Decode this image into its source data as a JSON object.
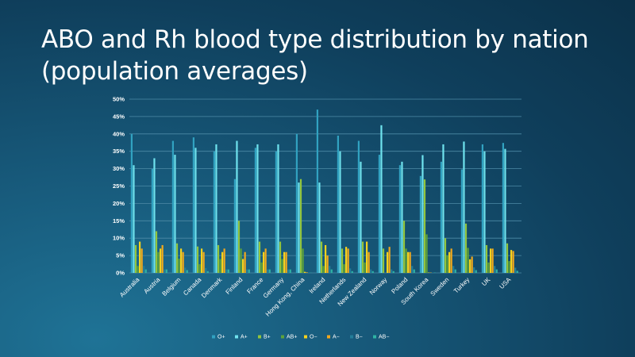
{
  "slide": {
    "title_line1": "ABO and Rh blood type distribution by nation",
    "title_line2": "(population averages)"
  },
  "colors": {
    "background": "#13506f",
    "text": "#ffffff",
    "gridline": "#4d8aa6",
    "series": [
      "#31a2c1",
      "#6fe3ee",
      "#93c53c",
      "#5ea33a",
      "#f5d21d",
      "#f2a81c",
      "#237d99",
      "#2fb3a4"
    ]
  },
  "chart_data": {
    "type": "bar",
    "title": "",
    "xlabel": "",
    "ylabel": "",
    "ylim": [
      0,
      50
    ],
    "y_ticks": [
      "0%",
      "5%",
      "10%",
      "15%",
      "20%",
      "25%",
      "30%",
      "35%",
      "40%",
      "45%",
      "50%"
    ],
    "grid": true,
    "legend_position": "bottom",
    "categories": [
      "Australia",
      "Austria",
      "Belgium",
      "Canada",
      "Denmark",
      "Finland",
      "France",
      "Germany",
      "Hong Kong, China",
      "Ireland",
      "Netherlands",
      "New Zealand",
      "Norway",
      "Poland",
      "South Korea",
      "Sweden",
      "Turkey",
      "UK",
      "USA"
    ],
    "series": [
      {
        "name": "O+",
        "values": [
          40,
          30,
          38,
          39,
          35,
          27,
          36,
          35,
          40,
          47,
          39.5,
          38,
          34,
          31,
          27.9,
          32,
          29.8,
          37,
          37.4
        ]
      },
      {
        "name": "A+",
        "values": [
          31,
          33,
          34,
          36,
          37,
          38,
          37,
          37,
          26,
          26,
          35,
          32,
          42.5,
          32,
          33.9,
          37,
          37.8,
          35,
          35.7
        ]
      },
      {
        "name": "B+",
        "values": [
          8,
          12,
          8.5,
          7.6,
          8,
          15,
          9,
          9,
          27,
          9,
          7,
          9,
          7,
          15,
          26.9,
          10,
          14.2,
          8,
          8.5
        ]
      },
      {
        "name": "AB+",
        "values": [
          2,
          6,
          4.1,
          2.5,
          4,
          7,
          3,
          4,
          7,
          2,
          2.5,
          3,
          0,
          7,
          11.1,
          5,
          7.2,
          3,
          3.4
        ]
      },
      {
        "name": "O−",
        "values": [
          9,
          7,
          7,
          7,
          6,
          4,
          6,
          6,
          0.31,
          8,
          7.5,
          9,
          6,
          6,
          0.1,
          6,
          3.9,
          7,
          6.6
        ]
      },
      {
        "name": "A−",
        "values": [
          7,
          8,
          6,
          6,
          7,
          6,
          7,
          6,
          0.17,
          5,
          7,
          6,
          7.5,
          6,
          0.1,
          7,
          4.7,
          7,
          6.3
        ]
      },
      {
        "name": "B−",
        "values": [
          2,
          1,
          1.5,
          1.4,
          1,
          1,
          1,
          1,
          0.14,
          2,
          1.3,
          1,
          1,
          2,
          0.1,
          2,
          1.6,
          2,
          1.5
        ]
      },
      {
        "name": "AB−",
        "values": [
          1,
          1,
          0.8,
          0.5,
          1,
          1,
          1,
          1,
          0.05,
          1,
          0.5,
          0.5,
          0.5,
          1,
          0.1,
          1,
          0.8,
          1,
          0.6
        ]
      }
    ]
  }
}
